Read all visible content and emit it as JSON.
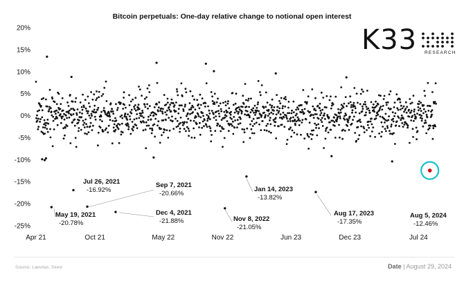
{
  "header": {
    "title": "Bitcoin perpetuals: One-day relative change to notional open interest"
  },
  "logo": {
    "name": "K33",
    "subtitle": "RESEARCH"
  },
  "footer": {
    "source": "Source: Laevitas, Skew",
    "date_label": "Date",
    "separator": " | ",
    "date_value": "August 29, 2024"
  },
  "colors": {
    "point": "#111111",
    "highlight_point": "#d0021b",
    "highlight_ring": "#19c1c8"
  },
  "chart_data": {
    "type": "scatter",
    "title": "Bitcoin perpetuals: One-day relative change to notional open interest",
    "ylim": [
      -25,
      20
    ],
    "yticks": [
      20,
      15,
      10,
      5,
      0,
      -5,
      -10,
      -15,
      -20,
      -25
    ],
    "ytick_labels": [
      "20%",
      "15%",
      "10%",
      "5%",
      "0%",
      "-5%",
      "-10%",
      "-15%",
      "-20%",
      "-25%"
    ],
    "xlim": [
      "2021-04-01",
      "2024-08-25"
    ],
    "xticks": [
      "2021-04-01",
      "2021-10-01",
      "2022-05-01",
      "2022-11-01",
      "2023-06-01",
      "2023-12-01",
      "2024-07-01"
    ],
    "xtick_labels": [
      "Apr 21",
      "Oct 21",
      "May 22",
      "Nov 22",
      "Jun 23",
      "Dec 23",
      "Jul 24"
    ],
    "seed": 7,
    "noise_sd": 2.6,
    "outliers": [
      {
        "date": "2021-05-05",
        "value": 13.4
      },
      {
        "date": "2021-07-20",
        "value": 8.8
      },
      {
        "date": "2022-04-10",
        "value": 12.0
      },
      {
        "date": "2022-09-10",
        "value": 11.8
      },
      {
        "date": "2022-10-05",
        "value": 10.1
      },
      {
        "date": "2023-04-15",
        "value": 9.6
      },
      {
        "date": "2023-11-20",
        "value": 8.7
      },
      {
        "date": "2021-04-20",
        "value": -9.9
      },
      {
        "date": "2021-04-28",
        "value": -10.1
      },
      {
        "date": "2021-05-02",
        "value": -9.7
      },
      {
        "date": "2022-04-01",
        "value": -9.5
      },
      {
        "date": "2024-04-10",
        "value": -10.4
      },
      {
        "date": "2023-10-05",
        "value": -9.2
      }
    ],
    "annotations": [
      {
        "date": "2021-05-19",
        "value": -20.78,
        "label": "May 19, 2021",
        "value_label": "-20.78%"
      },
      {
        "date": "2021-07-26",
        "value": -16.92,
        "label": "Jul 26, 2021",
        "value_label": "-16.92%"
      },
      {
        "date": "2021-09-07",
        "value": -20.66,
        "label": "Sep 7, 2021",
        "value_label": "-20.66%"
      },
      {
        "date": "2021-12-04",
        "value": -21.88,
        "label": "Dec 4, 2021",
        "value_label": "-21.88%"
      },
      {
        "date": "2022-11-08",
        "value": -21.05,
        "label": "Nov 8, 2022",
        "value_label": "-21.05%"
      },
      {
        "date": "2023-01-14",
        "value": -13.82,
        "label": "Jan 14, 2023",
        "value_label": "-13.82%"
      },
      {
        "date": "2023-08-17",
        "value": -17.35,
        "label": "Aug 17, 2023",
        "value_label": "-17.35%"
      },
      {
        "date": "2024-08-05",
        "value": -12.46,
        "label": "Aug 5, 2024",
        "value_label": "-12.46%",
        "highlight": true
      }
    ]
  }
}
